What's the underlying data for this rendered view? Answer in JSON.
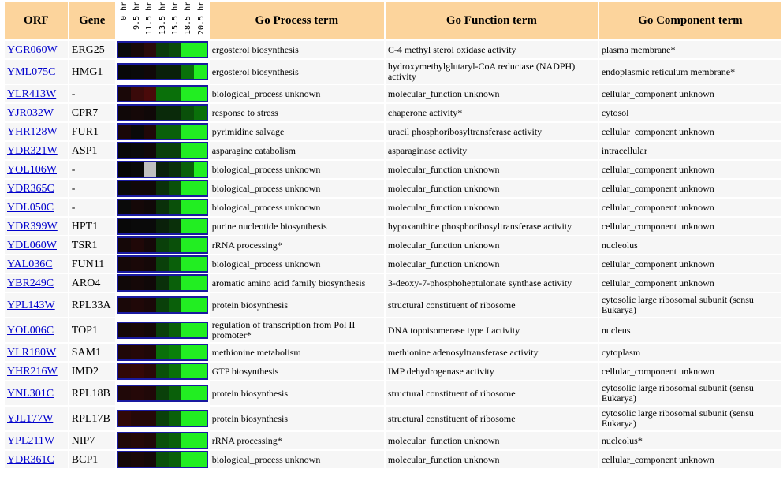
{
  "headers": {
    "orf": "ORF",
    "gene": "Gene",
    "times": [
      "0 hr",
      "9.5 hr",
      "11.5 hr",
      "13.5 hr",
      "15.5 hr",
      "18.5 hr",
      "20.5 hr"
    ],
    "process": "Go Process term",
    "function": "Go Function term",
    "component": "Go Component term"
  },
  "colors": {
    "header_bg": "#fcd49c",
    "link": "#0000cc",
    "heat_border": "#1a1aa0"
  },
  "rows": [
    {
      "orf": "YGR060W",
      "gene": "ERG25",
      "process": "ergosterol biosynthesis",
      "function": "C-4 methyl sterol oxidase activity",
      "component": "plasma membrane*",
      "heat": [
        "#0a0a0a",
        "#180808",
        "#2a0a0a",
        "#0a3a0a",
        "#0a4a0a",
        "#22ee22",
        "#22ee22"
      ]
    },
    {
      "orf": "YML075C",
      "gene": "HMG1",
      "process": "ergosterol biosynthesis",
      "function": "hydroxymethylglutaryl-CoA reductase (NADPH) activity",
      "component": "endoplasmic reticulum membrane*",
      "heat": [
        "#080808",
        "#0a0a0a",
        "#100808",
        "#0a200a",
        "#0a200a",
        "#0a700a",
        "#22ee22"
      ]
    },
    {
      "orf": "YLR413W",
      "gene": "-",
      "process": "biological_process unknown",
      "function": "molecular_function unknown",
      "component": "cellular_component unknown",
      "heat": [
        "#1a0808",
        "#3a0a0a",
        "#4a0a0a",
        "#0a700a",
        "#0a700a",
        "#22ee22",
        "#22ee22"
      ]
    },
    {
      "orf": "YJR032W",
      "gene": "CPR7",
      "process": "response to stress",
      "function": "chaperone activity*",
      "component": "cytosol",
      "heat": [
        "#100808",
        "#150808",
        "#100808",
        "#0a2a0a",
        "#0a2a0a",
        "#0a500a",
        "#0a700a"
      ]
    },
    {
      "orf": "YHR128W",
      "gene": "FUR1",
      "process": "pyrimidine salvage",
      "function": "uracil phosphoribosyltransferase activity",
      "component": "cellular_component unknown",
      "heat": [
        "#1a0808",
        "#0a0a0a",
        "#200808",
        "#0a600a",
        "#0a600a",
        "#22ee22",
        "#22ee22"
      ]
    },
    {
      "orf": "YDR321W",
      "gene": "ASP1",
      "process": "asparagine catabolism",
      "function": "asparaginase activity",
      "component": "intracellular",
      "heat": [
        "#080808",
        "#0a0a0a",
        "#100808",
        "#0a400a",
        "#0a400a",
        "#22ee22",
        "#22ee22"
      ]
    },
    {
      "orf": "YOL106W",
      "gene": "-",
      "process": "biological_process unknown",
      "function": "molecular_function unknown",
      "component": "cellular_component unknown",
      "heat": [
        "#050505",
        "#080808",
        "#c0c0c0",
        "#0a200a",
        "#0a300a",
        "#0a600a",
        "#22ee22"
      ]
    },
    {
      "orf": "YDR365C",
      "gene": "-",
      "process": "biological_process unknown",
      "function": "molecular_function unknown",
      "component": "cellular_component unknown",
      "heat": [
        "#0a0a0a",
        "#100808",
        "#100808",
        "#0a300a",
        "#0a500a",
        "#22ee22",
        "#22ee22"
      ]
    },
    {
      "orf": "YDL050C",
      "gene": "-",
      "process": "biological_process unknown",
      "function": "molecular_function unknown",
      "component": "cellular_component unknown",
      "heat": [
        "#0a0a0a",
        "#150808",
        "#100808",
        "#0a300a",
        "#0a500a",
        "#22ee22",
        "#22ee22"
      ]
    },
    {
      "orf": "YDR399W",
      "gene": "HPT1",
      "process": "purine nucleotide biosynthesis",
      "function": "hypoxanthine phosphoribosyltransferase activity",
      "component": "cellular_component unknown",
      "heat": [
        "#080808",
        "#0a0a0a",
        "#0a0a0a",
        "#0a200a",
        "#0a300a",
        "#22ee22",
        "#22ee22"
      ]
    },
    {
      "orf": "YDL060W",
      "gene": "TSR1",
      "process": "rRNA processing*",
      "function": "molecular_function unknown",
      "component": "nucleolus",
      "heat": [
        "#150808",
        "#200808",
        "#150808",
        "#0a400a",
        "#0a500a",
        "#22ee22",
        "#22ee22"
      ]
    },
    {
      "orf": "YAL036C",
      "gene": "FUN11",
      "process": "biological_process unknown",
      "function": "molecular_function unknown",
      "component": "cellular_component unknown",
      "heat": [
        "#150808",
        "#1a0808",
        "#150808",
        "#0a400a",
        "#0a600a",
        "#22ee22",
        "#22ee22"
      ]
    },
    {
      "orf": "YBR249C",
      "gene": "ARO4",
      "process": "aromatic amino acid family biosynthesis",
      "function": "3-deoxy-7-phosphoheptulonate synthase activity",
      "component": "cellular_component unknown",
      "heat": [
        "#100808",
        "#150808",
        "#100808",
        "#0a300a",
        "#0a600a",
        "#22ee22",
        "#22ee22"
      ]
    },
    {
      "orf": "YPL143W",
      "gene": "RPL33A",
      "process": "protein biosynthesis",
      "function": "structural constituent of ribosome",
      "component": "cytosolic large ribosomal subunit (sensu Eukarya)",
      "heat": [
        "#1a0808",
        "#200808",
        "#1a0808",
        "#0a400a",
        "#0a600a",
        "#22ee22",
        "#22ee22"
      ]
    },
    {
      "orf": "YOL006C",
      "gene": "TOP1",
      "process": "regulation of transcription from Pol II promoter*",
      "function": "DNA topoisomerase type I activity",
      "component": "nucleus",
      "heat": [
        "#150808",
        "#1a0808",
        "#150808",
        "#0a400a",
        "#0a600a",
        "#22ee22",
        "#22ee22"
      ]
    },
    {
      "orf": "YLR180W",
      "gene": "SAM1",
      "process": "methionine metabolism",
      "function": "methionine adenosyltransferase activity",
      "component": "cytoplasm",
      "heat": [
        "#200808",
        "#250808",
        "#200808",
        "#0a700a",
        "#0a800a",
        "#22ee22",
        "#22ee22"
      ]
    },
    {
      "orf": "YHR216W",
      "gene": "IMD2",
      "process": "GTP biosynthesis",
      "function": "IMP dehydrogenase activity",
      "component": "cellular_component unknown",
      "heat": [
        "#300808",
        "#350808",
        "#2a0808",
        "#0a500a",
        "#0a700a",
        "#22ee22",
        "#22ee22"
      ]
    },
    {
      "orf": "YNL301C",
      "gene": "RPL18B",
      "process": "protein biosynthesis",
      "function": "structural constituent of ribosome",
      "component": "cytosolic large ribosomal subunit (sensu Eukarya)",
      "heat": [
        "#200808",
        "#250808",
        "#200808",
        "#0a400a",
        "#0a600a",
        "#22ee22",
        "#22ee22"
      ]
    },
    {
      "orf": "YJL177W",
      "gene": "RPL17B",
      "process": "protein biosynthesis",
      "function": "structural constituent of ribosome",
      "component": "cytosolic large ribosomal subunit (sensu Eukarya)",
      "heat": [
        "#300808",
        "#250808",
        "#250808",
        "#0a400a",
        "#0a600a",
        "#22ee22",
        "#22ee22"
      ]
    },
    {
      "orf": "YPL211W",
      "gene": "NIP7",
      "process": "rRNA processing*",
      "function": "molecular_function unknown",
      "component": "nucleolus*",
      "heat": [
        "#200808",
        "#250808",
        "#200808",
        "#0a500a",
        "#0a600a",
        "#22ee22",
        "#22ee22"
      ]
    },
    {
      "orf": "YDR361C",
      "gene": "BCP1",
      "process": "biological_process unknown",
      "function": "molecular_function unknown",
      "component": "cellular_component unknown",
      "heat": [
        "#150808",
        "#1a0808",
        "#150808",
        "#0a500a",
        "#0a600a",
        "#22ee22",
        "#22ee22"
      ]
    }
  ]
}
